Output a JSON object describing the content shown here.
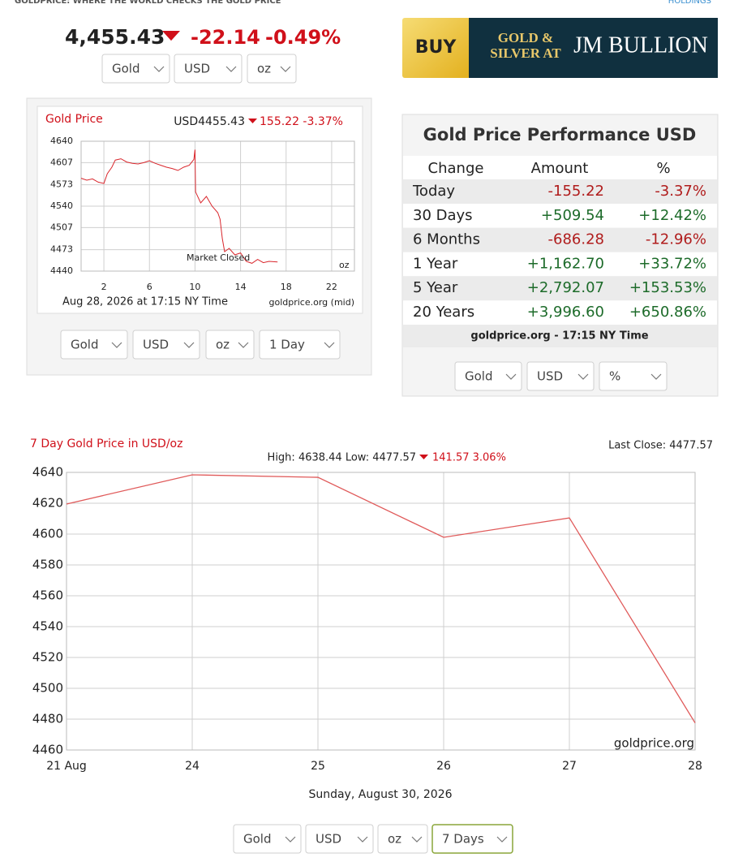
{
  "header": {
    "tagline": "GOLDPRICE: WHERE THE WORLD CHECKS THE GOLD PRICE",
    "holdings": "HOLDINGS"
  },
  "price": {
    "value": "4,455.43",
    "change": "-22.14",
    "percent": "-0.49%",
    "selects": [
      "Gold",
      "USD",
      "oz"
    ]
  },
  "ad": {
    "buy": "BUY",
    "line1": "GOLD &",
    "line2": "SILVER AT",
    "brand": "JM BULLION"
  },
  "performance": {
    "title": "Gold Price Performance USD",
    "headers": [
      "Change",
      "Amount",
      "%"
    ],
    "rows": [
      [
        "Today",
        "-155.22",
        "-3.37%"
      ],
      [
        "30 Days",
        "+509.54",
        "+12.42%"
      ],
      [
        "6 Months",
        "-686.28",
        "-12.96%"
      ],
      [
        "1 Year",
        "+1,162.70",
        "+33.72%"
      ],
      [
        "5 Year",
        "+2,792.07",
        "+153.53%"
      ],
      [
        "20 Years",
        "+3,996.60",
        "+650.86%"
      ]
    ],
    "footer": "goldprice.org - 17:15 NY Time",
    "selects": [
      "Gold",
      "USD",
      "%"
    ]
  },
  "chart_data": [
    {
      "type": "line",
      "title": "Gold Price",
      "quote": "USD4455.43",
      "change": "155.22 -3.37%",
      "x": [
        0,
        0.5,
        1,
        1.5,
        2,
        2.3,
        2.7,
        3,
        3.5,
        4,
        4.5,
        5,
        5.5,
        6,
        6.5,
        7,
        7.5,
        8,
        8.5,
        9,
        9.5,
        9.9,
        10,
        10.05,
        10.5,
        11,
        11.5,
        12,
        12.2,
        12.4,
        12.6,
        13,
        13.5,
        14,
        14.5,
        15,
        15.5,
        16,
        16.5,
        17.25
      ],
      "values": [
        4583,
        4580,
        4582,
        4577,
        4575,
        4590,
        4600,
        4611,
        4613,
        4608,
        4606,
        4605,
        4607,
        4610,
        4606,
        4603,
        4600,
        4598,
        4595,
        4600,
        4603,
        4612,
        4627,
        4562,
        4545,
        4555,
        4540,
        4530,
        4520,
        4490,
        4470,
        4475,
        4465,
        4468,
        4455,
        4452,
        4458,
        4453,
        4455,
        4454
      ],
      "color": "#d9262c",
      "xlim": [
        0,
        24
      ],
      "xticks": [
        2,
        6,
        10,
        14,
        18,
        22
      ],
      "ylim": [
        4440,
        4640
      ],
      "yticks": [
        4440,
        4473,
        4507,
        4540,
        4573,
        4607,
        4640
      ],
      "grid": true,
      "annotation": "Market Closed",
      "unit": "oz",
      "footer": "Aug 28, 2026 at 17:15 NY Time",
      "source": "goldprice.org (mid)",
      "selects": [
        "Gold",
        "USD",
        "oz",
        "1 Day"
      ]
    },
    {
      "type": "line",
      "title": "7 Day Gold Price in USD/oz",
      "high_low": "High: 4638.44 Low: 4477.57",
      "change": "141.57 3.06%",
      "last_close": "Last Close: 4477.57",
      "categories": [
        "21 Aug",
        "24",
        "25",
        "26",
        "27",
        "28"
      ],
      "values": [
        4619.5,
        4638.44,
        4636.8,
        4597.9,
        4610.5,
        4477.57
      ],
      "color": "#e05a5a",
      "ylim": [
        4460,
        4640
      ],
      "yticks": [
        4460,
        4480,
        4500,
        4520,
        4540,
        4560,
        4580,
        4600,
        4620,
        4640
      ],
      "grid": true,
      "xlabel": "Sunday, August 30, 2026",
      "source": "goldprice.org",
      "selects": [
        "Gold",
        "USD",
        "oz",
        "7 Days"
      ]
    }
  ]
}
